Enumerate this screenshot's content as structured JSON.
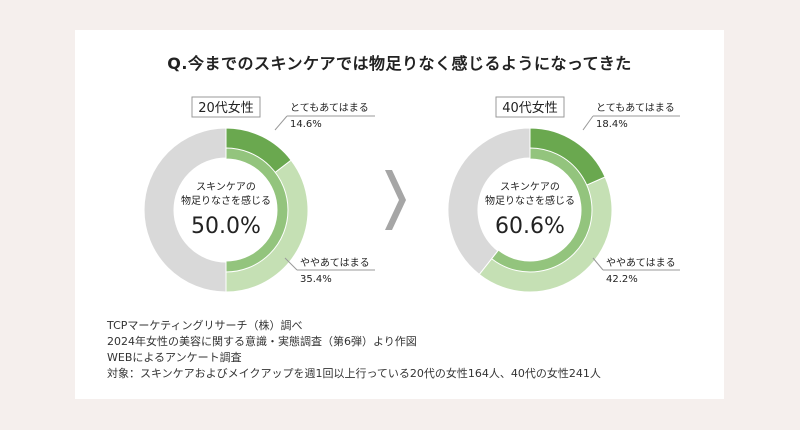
{
  "title": "Q.今までのスキンケアでは物足りなく感じるようになってきた",
  "colors": {
    "dark_green": "#6aa84f",
    "mid_green": "#93c47d",
    "light_green": "#c5e0b4",
    "gray": "#d9d9d9",
    "arrow": "#a6a6a6"
  },
  "chart_data": [
    {
      "type": "pie",
      "variant": "donut",
      "group": "20代女性",
      "center_label": [
        "スキンケアの",
        "物足りなさを感じる"
      ],
      "total_value": "50.0%",
      "slices": [
        {
          "label": "とてもあてはまる",
          "value": 14.6,
          "value_label": "14.6%"
        },
        {
          "label": "ややあてはまる",
          "value": 35.4,
          "value_label": "35.4%"
        },
        {
          "label": "",
          "value": 50.0
        }
      ]
    },
    {
      "type": "pie",
      "variant": "donut",
      "group": "40代女性",
      "center_label": [
        "スキンケアの",
        "物足りなさを感じる"
      ],
      "total_value": "60.6%",
      "slices": [
        {
          "label": "とてもあてはまる",
          "value": 18.4,
          "value_label": "18.4%"
        },
        {
          "label": "ややあてはまる",
          "value": 42.2,
          "value_label": "42.2%"
        },
        {
          "label": "",
          "value": 39.4
        }
      ]
    }
  ],
  "footer": [
    "TCPマーケティングリサーチ（株）調べ",
    "2024年女性の美容に関する意識・実態調査（第6弾）より作図",
    "WEBによるアンケート調査",
    "対象：スキンケアおよびメイクアップを週1回以上行っている20代の女性164人、40代の女性241人"
  ]
}
